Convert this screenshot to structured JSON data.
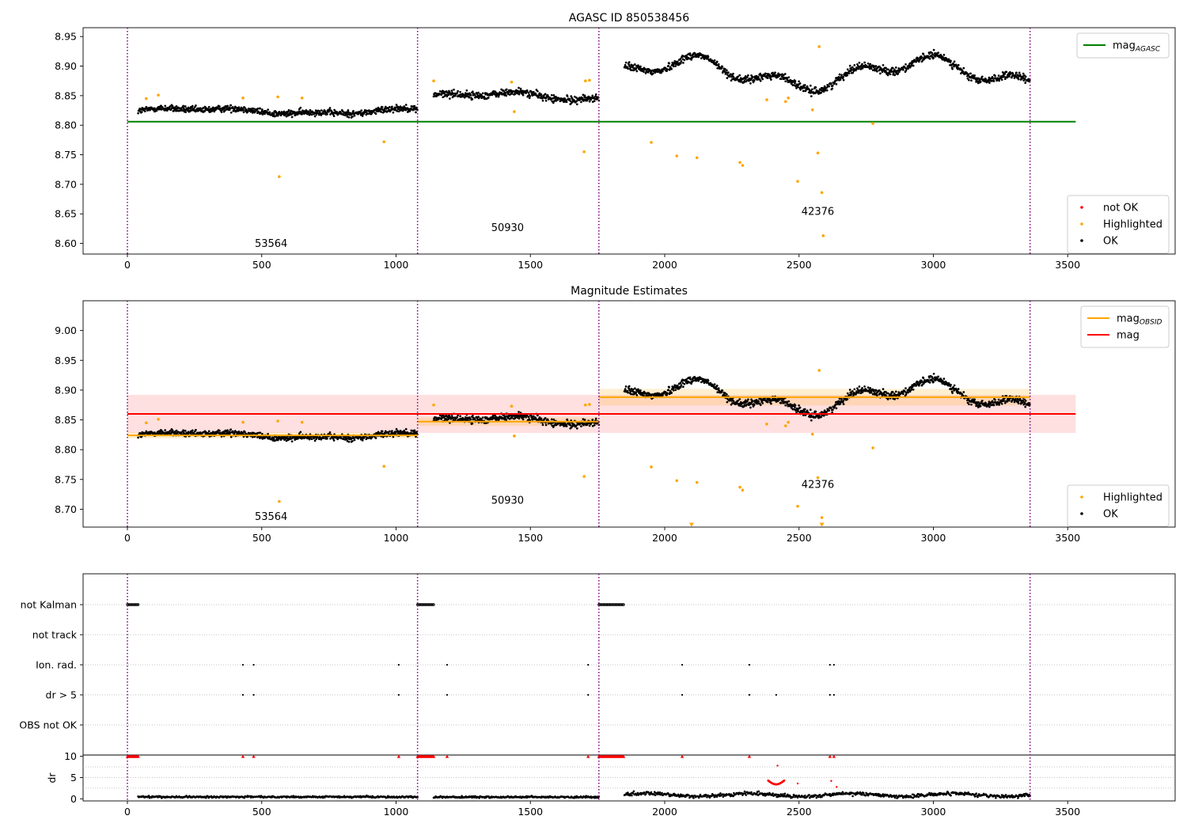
{
  "figure": {
    "panels": [
      {
        "title": "AGASC ID 850538456"
      },
      {
        "title": "Magnitude Estimates"
      },
      {
        "title": ""
      }
    ]
  },
  "colors": {
    "ok": "#000000",
    "highlighted": "#ffa500",
    "not_ok": "#ff0000",
    "mag_agasc": "#008000",
    "mag_obsid": "#ffa500",
    "mag": "#ff0000",
    "obs_boundary": "#800080",
    "grid": "#b0b0b0"
  },
  "chart_data": [
    {
      "type": "scatter",
      "title": "AGASC ID 850538456",
      "xlim": [
        -165,
        3900
      ],
      "ylim": [
        8.582,
        8.965
      ],
      "xticks": [
        0,
        500,
        1000,
        1500,
        2000,
        2500,
        3000,
        3500
      ],
      "yticks": [
        8.6,
        8.65,
        8.7,
        8.75,
        8.8,
        8.85,
        8.9,
        8.95
      ],
      "ytick_labels": [
        "8.60",
        "8.65",
        "8.70",
        "8.75",
        "8.80",
        "8.85",
        "8.90",
        "8.95"
      ],
      "obs_boundaries": [
        0,
        1080,
        1755,
        3360
      ],
      "obs_labels": [
        {
          "x": 535,
          "y": 8.594,
          "text": "53564"
        },
        {
          "x": 1415,
          "y": 8.621,
          "text": "50930"
        },
        {
          "x": 2570,
          "y": 8.648,
          "text": "42376"
        }
      ],
      "lines": [
        {
          "name": "mag_AGASC",
          "color": "#008000",
          "x": [
            0,
            3530
          ],
          "y": [
            8.806,
            8.806
          ]
        }
      ],
      "obs_segments": [
        {
          "x0": 40,
          "x1": 1080,
          "base": 8.824,
          "amp": 0.004,
          "noise": 0.008
        },
        {
          "x0": 1140,
          "x1": 1755,
          "base": 8.848,
          "amp": 0.006,
          "noise": 0.009
        },
        {
          "x0": 1850,
          "x1": 3360,
          "base": 8.888,
          "amp": 0.02,
          "noise": 0.009
        }
      ],
      "highlighted": {
        "x": [
          70,
          115,
          430,
          560,
          565,
          650,
          955,
          1140,
          1430,
          1440,
          1700,
          1705,
          1720,
          1950,
          2045,
          2120,
          2280,
          2290,
          2380,
          2450,
          2460,
          2495,
          2550,
          2570,
          2575,
          2585,
          2590,
          2775
        ],
        "y": [
          8.845,
          8.851,
          8.846,
          8.848,
          8.713,
          8.846,
          8.772,
          8.875,
          8.873,
          8.823,
          8.755,
          8.875,
          8.876,
          8.771,
          8.748,
          8.745,
          8.737,
          8.732,
          8.843,
          8.84,
          8.846,
          8.705,
          8.826,
          8.753,
          8.933,
          8.686,
          8.613,
          8.803
        ]
      },
      "legends": [
        {
          "position": "upper right",
          "entries": [
            {
              "label": "mag",
              "sub": "AGASC",
              "marker": "line",
              "color": "#008000"
            }
          ]
        },
        {
          "position": "lower right",
          "entries": [
            {
              "label": "not OK",
              "marker": "dot",
              "color": "#ff0000"
            },
            {
              "label": "Highlighted",
              "marker": "dot",
              "color": "#ffa500"
            },
            {
              "label": "OK",
              "marker": "dot",
              "color": "#000000"
            }
          ]
        }
      ]
    },
    {
      "type": "scatter",
      "title": "Magnitude Estimates",
      "xlim": [
        -165,
        3900
      ],
      "ylim": [
        8.67,
        9.05
      ],
      "xticks": [
        0,
        500,
        1000,
        1500,
        2000,
        2500,
        3000,
        3500
      ],
      "yticks": [
        8.7,
        8.75,
        8.8,
        8.85,
        8.9,
        8.95,
        9.0
      ],
      "ytick_labels": [
        "8.70",
        "8.75",
        "8.80",
        "8.85",
        "8.90",
        "8.95",
        "9.00"
      ],
      "obs_boundaries": [
        0,
        1080,
        1755,
        3360
      ],
      "obs_labels": [
        {
          "x": 535,
          "y": 8.682,
          "text": "53564"
        },
        {
          "x": 1415,
          "y": 8.709,
          "text": "50930"
        },
        {
          "x": 2570,
          "y": 8.736,
          "text": "42376"
        }
      ],
      "bands": [
        {
          "name": "mag",
          "x": [
            0,
            3530
          ],
          "y": [
            8.828,
            8.892
          ],
          "color": "#ff0000",
          "opacity": 0.12
        },
        {
          "name": "mag_OBSID",
          "x": [
            0,
            1080
          ],
          "y": [
            8.819,
            8.829
          ],
          "color": "#ffa500",
          "opacity": 0.18
        },
        {
          "name": "mag_OBSID",
          "x": [
            1080,
            1755
          ],
          "y": [
            8.84,
            8.854
          ],
          "color": "#ffa500",
          "opacity": 0.18
        },
        {
          "name": "mag_OBSID",
          "x": [
            1755,
            3360
          ],
          "y": [
            8.874,
            8.902
          ],
          "color": "#ffa500",
          "opacity": 0.18
        }
      ],
      "lines": [
        {
          "name": "mag_OBSID",
          "color": "#ffa500",
          "x": [
            0,
            1080
          ],
          "y": [
            8.824,
            8.824
          ]
        },
        {
          "name": "mag_OBSID",
          "color": "#ffa500",
          "x": [
            1080,
            1755
          ],
          "y": [
            8.847,
            8.847
          ]
        },
        {
          "name": "mag_OBSID",
          "color": "#ffa500",
          "x": [
            1755,
            3360
          ],
          "y": [
            8.888,
            8.888
          ]
        },
        {
          "name": "mag",
          "color": "#ff0000",
          "x": [
            0,
            3530
          ],
          "y": [
            8.86,
            8.86
          ]
        }
      ],
      "obs_segments": [
        {
          "x0": 40,
          "x1": 1080,
          "base": 8.824,
          "amp": 0.004,
          "noise": 0.008
        },
        {
          "x0": 1140,
          "x1": 1755,
          "base": 8.848,
          "amp": 0.006,
          "noise": 0.009
        },
        {
          "x0": 1850,
          "x1": 3360,
          "base": 8.888,
          "amp": 0.02,
          "noise": 0.009
        }
      ],
      "highlighted": {
        "x": [
          70,
          115,
          430,
          560,
          565,
          650,
          955,
          1140,
          1430,
          1440,
          1700,
          1705,
          1720,
          1950,
          2045,
          2120,
          2280,
          2290,
          2380,
          2450,
          2460,
          2495,
          2550,
          2570,
          2575,
          2585,
          2775
        ],
        "y": [
          8.845,
          8.851,
          8.846,
          8.848,
          8.713,
          8.846,
          8.772,
          8.875,
          8.873,
          8.823,
          8.755,
          8.875,
          8.876,
          8.771,
          8.748,
          8.745,
          8.737,
          8.732,
          8.843,
          8.84,
          8.846,
          8.705,
          8.826,
          8.753,
          8.933,
          8.686,
          8.803
        ]
      },
      "offscale_markers": {
        "x": [
          2100,
          2585
        ],
        "y": [
          8.672,
          8.672
        ],
        "color": "#ffa500"
      },
      "legends": [
        {
          "position": "upper right",
          "entries": [
            {
              "label": "mag",
              "sub": "OBSID",
              "marker": "line",
              "color": "#ffa500"
            },
            {
              "label": "mag",
              "marker": "line",
              "color": "#ff0000"
            }
          ]
        },
        {
          "position": "lower right",
          "entries": [
            {
              "label": "Highlighted",
              "marker": "dot",
              "color": "#ffa500"
            },
            {
              "label": "OK",
              "marker": "dot",
              "color": "#000000"
            }
          ]
        }
      ]
    },
    {
      "type": "scatter",
      "xlim": [
        -165,
        3900
      ],
      "flag_rows": [
        "not Kalman",
        "not track",
        "Ion. rad.",
        "dr > 5",
        "OBS not OK"
      ],
      "obs_boundaries": [
        0,
        1080,
        1755,
        3360
      ],
      "flags": {
        "not Kalman": {
          "ranges": [
            [
              0,
              40
            ],
            [
              1080,
              1140
            ],
            [
              1755,
              1850
            ]
          ]
        },
        "not track": {
          "x": []
        },
        "Ion. rad.": {
          "x": [
            430,
            470,
            1010,
            1190,
            1715,
            2065,
            2315,
            2615,
            2630
          ]
        },
        "dr > 5": {
          "x": [
            430,
            470,
            1010,
            1190,
            1715,
            2065,
            2315,
            2415,
            2615,
            2630
          ]
        },
        "OBS not OK": {
          "x": []
        }
      },
      "dr": {
        "ylabel": "dr",
        "ylim": [
          -0.5,
          10.3
        ],
        "yticks": [
          0,
          5,
          10
        ],
        "ytick_labels": [
          "0",
          "5",
          "10"
        ],
        "clip_markers": {
          "ranges": [
            [
              0,
              40
            ],
            [
              1080,
              1140
            ],
            [
              1755,
              1850
            ]
          ],
          "x": [
            430,
            470,
            1010,
            1190,
            1715,
            2065,
            2315,
            2615,
            2630
          ],
          "y": 10
        },
        "outliers": {
          "x": [
            2420,
            2495,
            2620,
            2640
          ],
          "y": [
            7.8,
            3.6,
            4.2,
            2.8
          ]
        },
        "segments": [
          {
            "x0": 40,
            "x1": 1080,
            "base": 0.45,
            "noise": 0.25
          },
          {
            "x0": 1140,
            "x1": 1755,
            "base": 0.4,
            "noise": 0.25
          },
          {
            "x0": 1850,
            "x1": 3360,
            "base": 0.9,
            "noise": 0.5
          }
        ],
        "hump": {
          "x0": 2385,
          "x1": 2445,
          "peak": 4.3,
          "floor": 3.4
        }
      },
      "xticks": [
        0,
        500,
        1000,
        1500,
        2000,
        2500,
        3000,
        3500
      ]
    }
  ]
}
